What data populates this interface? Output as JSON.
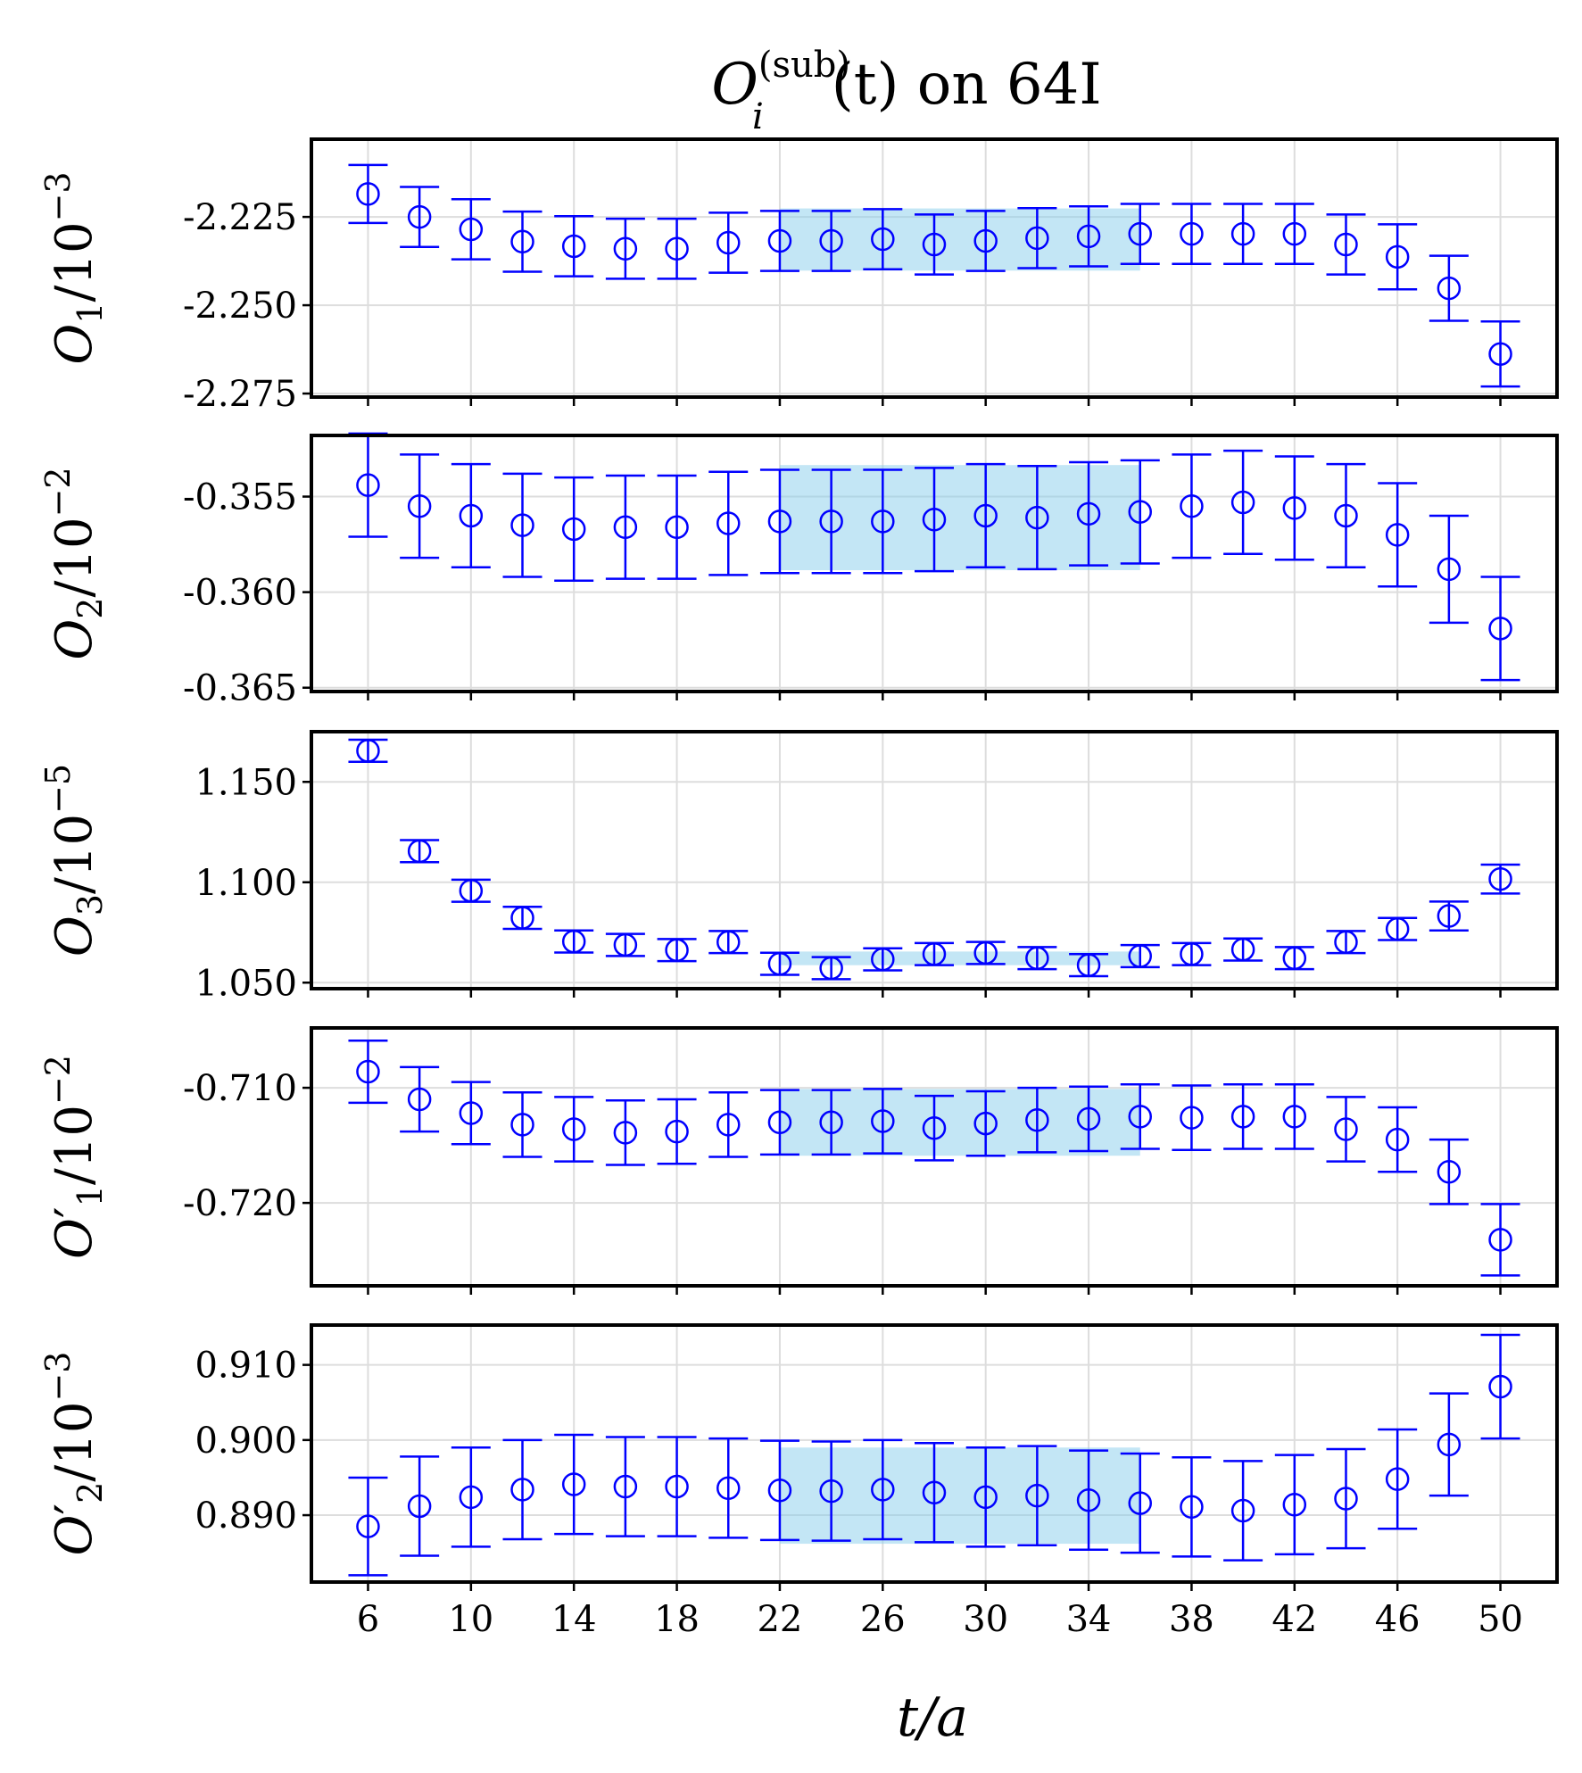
{
  "chart_data": {
    "type": "errorbar",
    "title": {
      "base": "O",
      "sub": "i",
      "sup": "(sub)",
      "rest": "(t) on 64I"
    },
    "xlabel": "t/a",
    "x_ticks": [
      6,
      10,
      14,
      18,
      22,
      26,
      30,
      34,
      38,
      42,
      46,
      50
    ],
    "xlim": [
      3.8,
      52.2
    ],
    "colors": {
      "points": "#0000ff",
      "band": "#87ceeb",
      "grid": "#dddddd",
      "axis": "#000000"
    },
    "panels": [
      {
        "ylabel": {
          "base": "O",
          "prime": false,
          "sub": "1",
          "scale_base": "/10",
          "scale_exp": "−3"
        },
        "ylim": [
          -2.276,
          -2.203
        ],
        "y_ticks": [
          -2.225,
          -2.25,
          -2.275
        ],
        "y_tick_labels": [
          "-2.225",
          "-2.250",
          "-2.275"
        ],
        "x": [
          6,
          8,
          10,
          12,
          14,
          16,
          18,
          20,
          22,
          24,
          26,
          28,
          30,
          32,
          34,
          36,
          38,
          40,
          42,
          44,
          46,
          48,
          50
        ],
        "y": [
          -2.2185,
          -2.225,
          -2.2285,
          -2.232,
          -2.2333,
          -2.234,
          -2.234,
          -2.2323,
          -2.2318,
          -2.2318,
          -2.2313,
          -2.2328,
          -2.2318,
          -2.231,
          -2.2305,
          -2.2298,
          -2.2298,
          -2.2298,
          -2.2298,
          -2.2328,
          -2.2363,
          -2.2452,
          -2.2638
        ],
        "yerr": [
          0.0082,
          0.0085,
          0.0085,
          0.0085,
          0.0085,
          0.0085,
          0.0085,
          0.0085,
          0.0085,
          0.0085,
          0.0085,
          0.0085,
          0.0085,
          0.0085,
          0.0085,
          0.0085,
          0.0085,
          0.0085,
          0.0085,
          0.0085,
          0.0092,
          0.0092,
          0.0092
        ],
        "band": {
          "x_range": [
            22,
            36
          ],
          "center": -2.2314,
          "half_width": 0.0088
        }
      },
      {
        "ylabel": {
          "base": "O",
          "prime": false,
          "sub": "2",
          "scale_base": "/10",
          "scale_exp": "−2"
        },
        "ylim": [
          -0.3652,
          -0.3518
        ],
        "y_ticks": [
          -0.355,
          -0.36,
          -0.365
        ],
        "y_tick_labels": [
          "-0.355",
          "-0.360",
          "-0.365"
        ],
        "x": [
          6,
          8,
          10,
          12,
          14,
          16,
          18,
          20,
          22,
          24,
          26,
          28,
          30,
          32,
          34,
          36,
          38,
          40,
          42,
          44,
          46,
          48,
          50
        ],
        "y": [
          -0.3544,
          -0.3555,
          -0.356,
          -0.3565,
          -0.3567,
          -0.3566,
          -0.3566,
          -0.3564,
          -0.3563,
          -0.3563,
          -0.3563,
          -0.3562,
          -0.356,
          -0.3561,
          -0.3559,
          -0.3558,
          -0.3555,
          -0.3553,
          -0.3556,
          -0.356,
          -0.357,
          -0.3588,
          -0.3619
        ],
        "yerr": [
          0.0027,
          0.0027,
          0.0027,
          0.0027,
          0.0027,
          0.0027,
          0.0027,
          0.0027,
          0.0027,
          0.0027,
          0.0027,
          0.0027,
          0.0027,
          0.0027,
          0.0027,
          0.0027,
          0.0027,
          0.0027,
          0.0027,
          0.0027,
          0.0027,
          0.0028,
          0.0027
        ],
        "band": {
          "x_range": [
            22,
            36
          ],
          "center": -0.3561,
          "half_width": 0.00275
        }
      },
      {
        "ylabel": {
          "base": "O",
          "prime": false,
          "sub": "3",
          "scale_base": "/10",
          "scale_exp": "−5"
        },
        "ylim": [
          1.047,
          1.175
        ],
        "y_ticks": [
          1.15,
          1.1,
          1.05
        ],
        "y_tick_labels": [
          "1.150",
          "1.100",
          "1.050"
        ],
        "x": [
          6,
          8,
          10,
          12,
          14,
          16,
          18,
          20,
          22,
          24,
          26,
          28,
          30,
          32,
          34,
          36,
          38,
          40,
          42,
          44,
          46,
          48,
          50
        ],
        "y": [
          1.1655,
          1.1155,
          1.0958,
          1.0823,
          1.0705,
          1.0688,
          1.0662,
          1.0702,
          1.0594,
          1.0572,
          1.0616,
          1.0642,
          1.0648,
          1.0622,
          1.0587,
          1.0632,
          1.0642,
          1.0665,
          1.0622,
          1.0702,
          1.0767,
          1.0832,
          1.1016
        ],
        "yerr": [
          0.0055,
          0.0055,
          0.0055,
          0.0055,
          0.0055,
          0.0055,
          0.0055,
          0.0055,
          0.0055,
          0.0055,
          0.0055,
          0.0055,
          0.0055,
          0.0055,
          0.0055,
          0.0055,
          0.0055,
          0.0055,
          0.0055,
          0.0055,
          0.0055,
          0.0072,
          0.0072
        ],
        "band": {
          "x_range": [
            22,
            36
          ],
          "center": 1.0621,
          "half_width": 0.0034
        }
      },
      {
        "ylabel": {
          "base": "O",
          "prime": true,
          "sub": "1",
          "scale_base": "/10",
          "scale_exp": "−2"
        },
        "ylim": [
          -0.7272,
          -0.7048
        ],
        "y_ticks": [
          -0.71,
          -0.72
        ],
        "y_tick_labels": [
          "-0.710",
          "-0.720"
        ],
        "x": [
          6,
          8,
          10,
          12,
          14,
          16,
          18,
          20,
          22,
          24,
          26,
          28,
          30,
          32,
          34,
          36,
          38,
          40,
          42,
          44,
          46,
          48,
          50
        ],
        "y": [
          -0.7086,
          -0.711,
          -0.7122,
          -0.7132,
          -0.7136,
          -0.7139,
          -0.7138,
          -0.7132,
          -0.713,
          -0.713,
          -0.7129,
          -0.7135,
          -0.7131,
          -0.7128,
          -0.7127,
          -0.7125,
          -0.7126,
          -0.7125,
          -0.7125,
          -0.7136,
          -0.7145,
          -0.7173,
          -0.7232
        ],
        "yerr": [
          0.0027,
          0.0028,
          0.0027,
          0.0028,
          0.0028,
          0.0028,
          0.0028,
          0.0028,
          0.0028,
          0.0028,
          0.0028,
          0.0028,
          0.0028,
          0.0028,
          0.0028,
          0.0028,
          0.0028,
          0.0028,
          0.0028,
          0.0028,
          0.0028,
          0.0028,
          0.0031
        ],
        "band": {
          "x_range": [
            22,
            36
          ],
          "center": -0.713,
          "half_width": 0.0029
        }
      },
      {
        "ylabel": {
          "base": "O",
          "prime": true,
          "sub": "2",
          "scale_base": "/10",
          "scale_exp": "−3"
        },
        "ylim": [
          0.8811,
          0.9153
        ],
        "y_ticks": [
          0.91,
          0.9,
          0.89
        ],
        "y_tick_labels": [
          "0.910",
          "0.900",
          "0.890"
        ],
        "x": [
          6,
          8,
          10,
          12,
          14,
          16,
          18,
          20,
          22,
          24,
          26,
          28,
          30,
          32,
          34,
          36,
          38,
          40,
          42,
          44,
          46,
          48,
          50
        ],
        "y": [
          0.8885,
          0.8912,
          0.8924,
          0.8934,
          0.8941,
          0.8938,
          0.8938,
          0.8936,
          0.8933,
          0.8932,
          0.8934,
          0.893,
          0.8924,
          0.8926,
          0.892,
          0.8916,
          0.8911,
          0.8906,
          0.8914,
          0.8922,
          0.8948,
          0.8994,
          0.9071
        ],
        "yerr": [
          0.0065,
          0.0066,
          0.0066,
          0.0066,
          0.0066,
          0.0066,
          0.0066,
          0.0066,
          0.0066,
          0.0066,
          0.0066,
          0.0066,
          0.0066,
          0.0066,
          0.0066,
          0.0066,
          0.0066,
          0.0066,
          0.0066,
          0.0066,
          0.0066,
          0.0068,
          0.0069
        ],
        "band": {
          "x_range": [
            22,
            36
          ],
          "center": 0.8926,
          "half_width": 0.0064
        }
      }
    ]
  }
}
